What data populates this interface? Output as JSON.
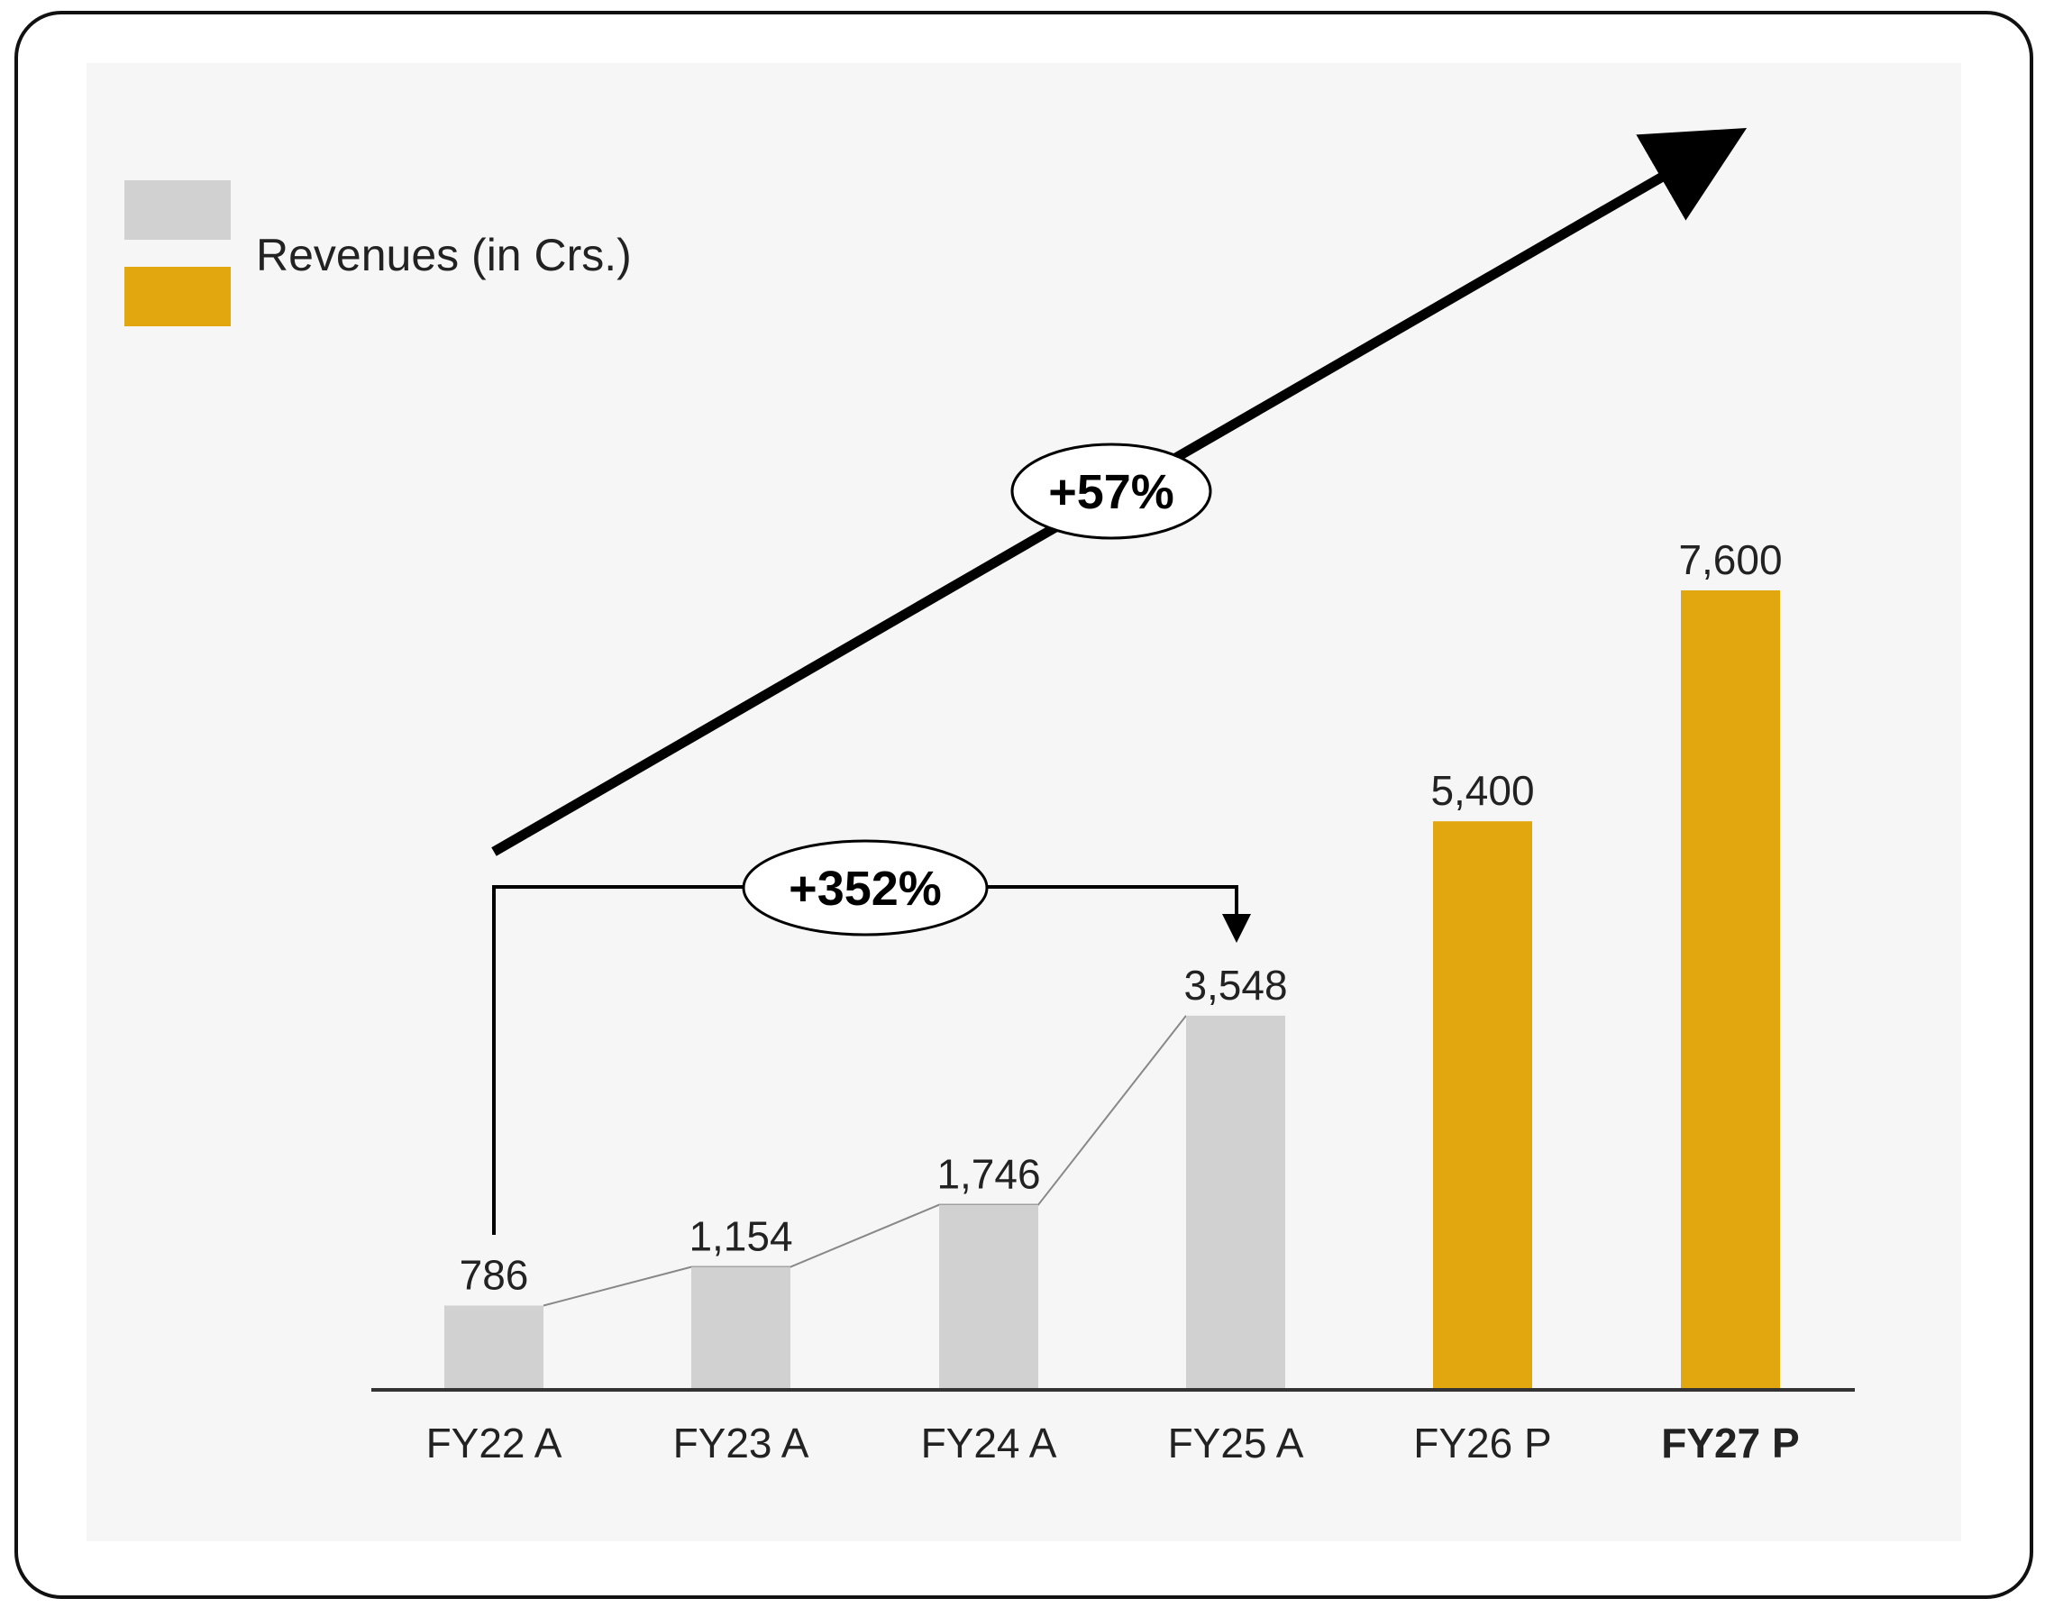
{
  "chart_data": {
    "type": "bar",
    "title": "",
    "xlabel": "",
    "ylabel": "",
    "ylim": [
      0,
      8000
    ],
    "categories": [
      "FY22 A",
      "FY23 A",
      "FY24 A",
      "FY25 A",
      "FY26 P",
      "FY27 P"
    ],
    "values": [
      786,
      1154,
      1746,
      3548,
      5400,
      7600
    ],
    "value_labels": [
      "786",
      "1,154",
      "1,746",
      "3,548",
      "5,400",
      "7,600"
    ],
    "bar_types": [
      "actual",
      "actual",
      "actual",
      "actual",
      "projected",
      "projected"
    ],
    "legend": {
      "label": "Revenues (in Crs.)",
      "placement": "top-left"
    },
    "annotations": {
      "overall_growth": "+57%",
      "actual_growth": "+352%"
    },
    "colors": {
      "actual": "#d1d1d1",
      "projected": "#e2a70e",
      "axis": "#333333",
      "text": "#222222",
      "arrow": "#000000"
    }
  }
}
